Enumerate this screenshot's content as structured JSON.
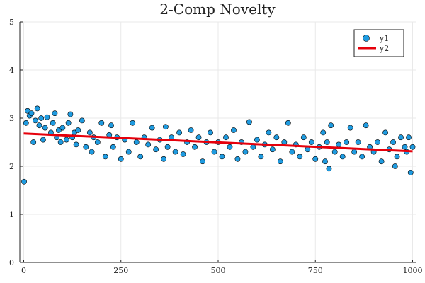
{
  "chart_data": {
    "type": "scatter",
    "title": "2-Comp Novelty",
    "xlabel": "",
    "ylabel": "",
    "xlim": [
      -10,
      1010
    ],
    "ylim": [
      0,
      5
    ],
    "xticks": [
      0,
      250,
      500,
      750,
      1000
    ],
    "yticks": [
      0,
      1,
      2,
      3,
      4,
      5
    ],
    "grid": true,
    "legend_position": "top-right",
    "colors": {
      "scatter": "#1f9be0",
      "scatter_edge": "#000000",
      "line": "#e6000b"
    },
    "series": [
      {
        "name": "y1",
        "kind": "scatter",
        "x": [
          1,
          6,
          10,
          15,
          20,
          25,
          30,
          35,
          40,
          45,
          50,
          55,
          60,
          70,
          75,
          80,
          85,
          90,
          95,
          100,
          110,
          115,
          120,
          125,
          130,
          135,
          140,
          150,
          160,
          170,
          175,
          180,
          190,
          200,
          210,
          220,
          225,
          230,
          240,
          250,
          260,
          270,
          280,
          290,
          300,
          310,
          320,
          330,
          340,
          350,
          360,
          365,
          370,
          380,
          390,
          400,
          410,
          420,
          430,
          440,
          450,
          460,
          470,
          480,
          490,
          500,
          510,
          520,
          530,
          540,
          550,
          560,
          570,
          580,
          590,
          600,
          610,
          620,
          630,
          640,
          650,
          660,
          670,
          680,
          690,
          700,
          710,
          720,
          730,
          740,
          750,
          760,
          770,
          775,
          780,
          785,
          790,
          800,
          810,
          820,
          830,
          840,
          850,
          860,
          870,
          880,
          890,
          900,
          910,
          920,
          930,
          940,
          950,
          955,
          960,
          970,
          980,
          985,
          990,
          995,
          1000
        ],
        "y": [
          1.68,
          2.9,
          3.15,
          3.05,
          3.1,
          2.5,
          2.95,
          3.2,
          2.85,
          3.0,
          2.55,
          2.8,
          3.02,
          2.7,
          2.9,
          3.1,
          2.6,
          2.75,
          2.5,
          2.8,
          2.55,
          2.9,
          3.08,
          2.6,
          2.7,
          2.45,
          2.75,
          2.95,
          2.4,
          2.7,
          2.3,
          2.6,
          2.5,
          2.9,
          2.2,
          2.65,
          2.85,
          2.4,
          2.6,
          2.15,
          2.55,
          2.3,
          2.9,
          2.5,
          2.2,
          2.6,
          2.45,
          2.8,
          2.35,
          2.55,
          2.15,
          2.82,
          2.4,
          2.6,
          2.3,
          2.7,
          2.25,
          2.5,
          2.75,
          2.4,
          2.6,
          2.1,
          2.5,
          2.7,
          2.3,
          2.5,
          2.2,
          2.6,
          2.4,
          2.75,
          2.15,
          2.5,
          2.3,
          2.92,
          2.4,
          2.55,
          2.2,
          2.45,
          2.7,
          2.35,
          2.6,
          2.1,
          2.5,
          2.9,
          2.3,
          2.45,
          2.2,
          2.6,
          2.35,
          2.5,
          2.15,
          2.4,
          2.7,
          2.1,
          2.5,
          1.95,
          2.85,
          2.3,
          2.45,
          2.2,
          2.5,
          2.8,
          2.3,
          2.5,
          2.2,
          2.85,
          2.4,
          2.3,
          2.5,
          2.1,
          2.7,
          2.35,
          2.5,
          2.0,
          2.2,
          2.6,
          2.4,
          2.3,
          2.6,
          1.87,
          2.4
        ],
        "style": "markers"
      },
      {
        "name": "y2",
        "kind": "line",
        "x": [
          0,
          1000
        ],
        "y": [
          2.68,
          2.31
        ],
        "style": "line"
      }
    ]
  }
}
